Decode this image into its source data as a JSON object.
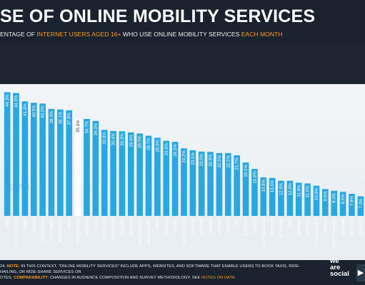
{
  "header": {
    "title": "SE OF ONLINE MOBILITY SERVICES",
    "subtitle_parts": [
      "ENTAGE OF ",
      "INTERNET USERS AGED 16+",
      " WHO USE ONLINE MOBILITY SERVICES ",
      "EACH MONTH"
    ]
  },
  "watermark": "GWI.",
  "chart_data": {
    "type": "bar",
    "categories": [
      "CHILE",
      "SOUTH AFRICA",
      "CHINA",
      "KENYA",
      "ARGENTINA",
      "COLOMBIA",
      "PHILIPPINES",
      "INDIA",
      "WORLDWIDE",
      "THAILAND",
      "U.A.E.",
      "AUSTRALIA",
      "PORTUGAL",
      "NIGERIA",
      "ROMANIA",
      "SAUDI ARABIA",
      "HONG KONG",
      "SPAIN",
      "CROATIA",
      "EGYPT",
      "NEW ZEALAND",
      "POLAND",
      "IRELAND",
      "CANADA",
      "RUSSIA",
      "TAIWAN",
      "U.K.",
      "FRANCE",
      "TURKEY",
      "SWITZERLAND",
      "SWEDEN",
      "GERMANY",
      "ITALY",
      "NORWAY",
      "AUSTRIA",
      "NETHERLANDS",
      "ISRAEL",
      "SOUTH KOREA",
      "CZECHIA",
      "BELGIUM",
      "GREECE"
    ],
    "values": [
      44.3,
      44.0,
      41.0,
      40.5,
      40.2,
      38.3,
      38.1,
      37.8,
      35.1,
      34.7,
      34.0,
      30.8,
      30.4,
      30.3,
      29.9,
      29.5,
      28.7,
      28.0,
      26.9,
      26.5,
      24.2,
      23.5,
      23.0,
      22.9,
      22.5,
      22.5,
      21.7,
      19.1,
      16.8,
      13.8,
      13.6,
      12.6,
      12.6,
      11.9,
      11.6,
      10.8,
      9.6,
      9.0,
      8.6,
      7.9,
      7.0
    ],
    "value_labels": [
      "44.3%",
      "44.0%",
      "41.0%",
      "40.5%",
      "40.2%",
      "38.3%",
      "38.1%",
      "37.8%",
      "35.1%",
      "34.7%",
      "34.0%",
      "30.8%",
      "30.4%",
      "30.3%",
      "29.9%",
      "29.5%",
      "28.7%",
      "28.0%",
      "26.9%",
      "26.5%",
      "24.2%",
      "23.5%",
      "23.0%",
      "22.9%",
      "22.5%",
      "22.5%",
      "21.7%",
      "19.1%",
      "16.8%",
      "13.8%",
      "13.6%",
      "12.6%",
      "12.6%",
      "11.9%",
      "11.6%",
      "10.8%",
      "9.6%",
      "9.0%",
      "8.6%",
      "7.9%",
      "7.0%"
    ],
    "highlight": "WORLDWIDE",
    "ylim": [
      0,
      50
    ],
    "grid": false,
    "colors": {
      "bar": "#29a7e0",
      "highlight": "#ffffff",
      "value_label": "#ffffff",
      "category_label": "#ffffff"
    }
  },
  "footer": {
    "note_prefix": "24.",
    "note_label": "NOTE:",
    "note_text": " IN THIS CONTEXT, \"ONLINE MOBILITY SERVICES\" INCLUDE APPS, WEBSITES, AND SOFTWARE THAT ENABLE USERS TO BOOK TAXIS, RIDE-HAILING, OR RIDE-SHARE SERVICES OR",
    "line2_prefix": "OTES.",
    "comparability_label": "COMPARABILITY:",
    "comparability_text": " CHANGES IN AUDIENCE COMPOSITION AND SURVEY METHODOLOGY. SEE ",
    "notes_link": "NOTES ON DATA",
    "notes_end": "."
  },
  "logo": {
    "line1": "we",
    "line2": "are",
    "line3": "social"
  },
  "nav": {
    "next_icon": "chevron-right-icon"
  }
}
